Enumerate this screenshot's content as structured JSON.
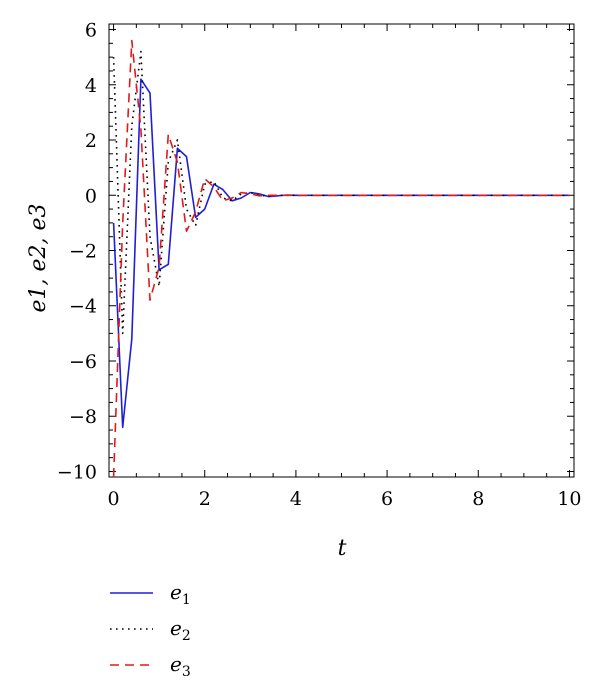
{
  "chart_data": {
    "type": "line",
    "xlabel": "t",
    "ylabel": "e1, e2, e3",
    "xlim": [
      -0.1,
      10.1
    ],
    "ylim": [
      -10.2,
      6.2
    ],
    "xticks": [
      0,
      2,
      4,
      6,
      8,
      10
    ],
    "yticks": [
      -10,
      -8,
      -6,
      -4,
      -2,
      0,
      2,
      4,
      6
    ],
    "xtick_labels": [
      "0",
      "2",
      "4",
      "6",
      "8",
      "10"
    ],
    "ytick_labels": [
      "−10",
      "−8",
      "−6",
      "−4",
      "−2",
      "0",
      "2",
      "4",
      "6"
    ],
    "grid": false,
    "legend_position": "bottom-left, below plot",
    "series": [
      {
        "name": "e1",
        "label_base": "e",
        "label_sub": "1",
        "color": "#1f1fd6",
        "style": "solid",
        "x": [
          0,
          0.2,
          0.4,
          0.6,
          0.8,
          1.0,
          1.2,
          1.4,
          1.6,
          1.8,
          2.0,
          2.2,
          2.4,
          2.6,
          2.8,
          3.0,
          3.2,
          3.4,
          3.6,
          3.8,
          4.0,
          5,
          6,
          7,
          8,
          9,
          10
        ],
        "y": [
          -1,
          -8.4,
          -5.2,
          4.2,
          3.7,
          -2.7,
          -2.5,
          1.7,
          1.4,
          -0.8,
          -0.5,
          0.4,
          0.2,
          -0.2,
          -0.1,
          0.1,
          0.05,
          -0.05,
          -0.02,
          0.01,
          0,
          0,
          0,
          0,
          0,
          0,
          0
        ]
      },
      {
        "name": "e2",
        "label_base": "e",
        "label_sub": "2",
        "color": "#000000",
        "style": "dotted",
        "x": [
          0,
          0.2,
          0.4,
          0.6,
          0.8,
          1.0,
          1.2,
          1.4,
          1.6,
          1.8,
          2.0,
          2.2,
          2.4,
          2.6,
          2.8,
          3.0,
          3.2,
          3.4,
          3.6,
          4.0,
          5,
          6,
          7,
          8,
          9,
          10
        ],
        "y": [
          5,
          -5,
          2.5,
          5.2,
          -1.5,
          -3.3,
          1.2,
          2.0,
          -0.5,
          -1.1,
          0.4,
          0.5,
          -0.1,
          -0.2,
          0.05,
          0.1,
          0.0,
          -0.03,
          0.0,
          0,
          0,
          0,
          0,
          0,
          0,
          0
        ]
      },
      {
        "name": "e3",
        "label_base": "e",
        "label_sub": "3",
        "color": "#e01a1a",
        "style": "dashed",
        "x": [
          0,
          0.2,
          0.4,
          0.6,
          0.8,
          1.0,
          1.2,
          1.4,
          1.6,
          1.8,
          2.0,
          2.2,
          2.4,
          2.6,
          2.8,
          3.0,
          3.2,
          3.4,
          3.6,
          4.0,
          5,
          6,
          7,
          8,
          9,
          10
        ],
        "y": [
          -10.2,
          -1,
          5.6,
          2.4,
          -3.8,
          -2.6,
          2.2,
          1.2,
          -1.3,
          -0.6,
          0.6,
          0.3,
          -0.2,
          -0.1,
          0.1,
          0.05,
          -0.02,
          0.0,
          0.0,
          0,
          0,
          0,
          0,
          0,
          0,
          0
        ]
      }
    ]
  }
}
